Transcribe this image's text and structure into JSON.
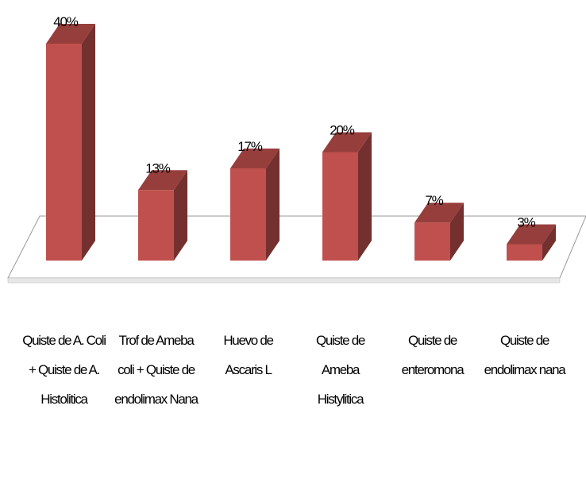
{
  "chart_data": {
    "type": "bar3d",
    "categories": [
      "Quiste de A. Coli + Quiste de A. Histolitica",
      "Trof de Ameba coli + Quiste de endolimax Nana",
      "Huevo de Ascaris L",
      "Quiste de Ameba Histylitica",
      "Quiste de enteromona",
      "Quiste de endolimax nana"
    ],
    "values": [
      40,
      13,
      17,
      20,
      7,
      3
    ],
    "value_labels": [
      "40%",
      "13%",
      "17%",
      "20%",
      "7%",
      "3%"
    ],
    "color": "#c0504d"
  }
}
